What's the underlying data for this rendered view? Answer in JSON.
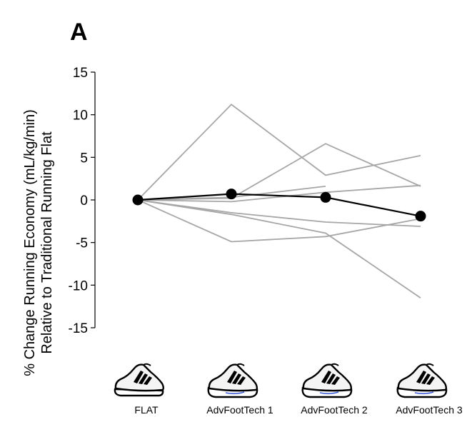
{
  "panel_label": "A",
  "chart_data": {
    "type": "line",
    "categories": [
      "FLAT",
      "AdvFootTech 1",
      "AdvFootTech 2",
      "AdvFootTech 3"
    ],
    "ylabel_line1": "% Change Running Economy (mL/kg/min)",
    "ylabel_line2": "Relative to Traditional Running Flat",
    "ylim": [
      -15,
      15
    ],
    "yticks": [
      15,
      10,
      5,
      0,
      -5,
      -10,
      -15
    ],
    "grid": false,
    "individual_color": "#a6a6a6",
    "mean_color": "#000000",
    "individuals": [
      {
        "values": [
          0,
          11.2,
          2.9,
          5.2
        ]
      },
      {
        "values": [
          0,
          0.2,
          6.6,
          1.6
        ]
      },
      {
        "values": [
          0,
          0.3,
          1.6,
          null
        ]
      },
      {
        "values": [
          0,
          -0.2,
          0.9,
          1.7
        ]
      },
      {
        "values": [
          0,
          -1.5,
          -2.6,
          -3.1
        ]
      },
      {
        "values": [
          0,
          -1.7,
          -3.9,
          -11.5
        ]
      },
      {
        "values": [
          0,
          -4.9,
          -4.3,
          -2.2
        ]
      }
    ],
    "mean": {
      "values": [
        0,
        0.7,
        0.3,
        -1.9
      ]
    },
    "shoe_icons": [
      "shoe-icon",
      "shoe-icon",
      "shoe-icon",
      "shoe-icon"
    ]
  }
}
